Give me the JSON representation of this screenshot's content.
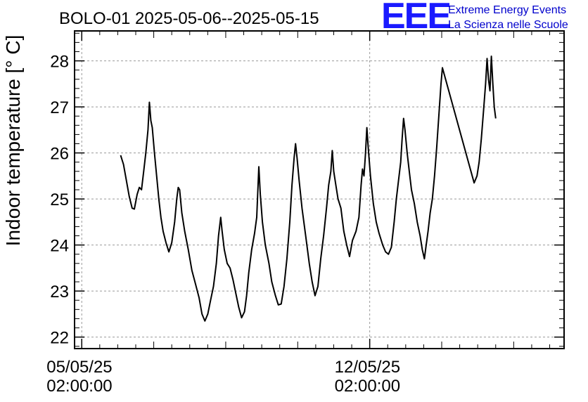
{
  "header": {
    "title": "BOLO-01 2025-05-06--2025-05-15",
    "logo_text": "EEE",
    "logo_line1": "Extreme Energy Events",
    "logo_line2": "La Scienza nelle Scuole"
  },
  "chart_data": {
    "type": "line",
    "title": "BOLO-01 2025-05-06--2025-05-15",
    "ylabel": "Indoor temperature [° C]",
    "xlabel": "",
    "ylim": [
      21.75,
      28.65
    ],
    "xlim_days": [
      -0.1,
      6.7
    ],
    "grid": true,
    "y_ticks": [
      22,
      23,
      24,
      25,
      26,
      27,
      28
    ],
    "y_tick_labels": [
      "22",
      "23",
      "24",
      "25",
      "26",
      "27",
      "28"
    ],
    "x_ticks": [
      {
        "value": 0,
        "line1": "05/05/25",
        "line2": "02:00:00"
      },
      {
        "value": 4,
        "line1": "12/05/25",
        "line2": "02:00:00"
      }
    ],
    "x_unit": "days since 05/05/25 02:00:00",
    "line_color": "#000000",
    "series": [
      {
        "name": "",
        "points": [
          [
            0.54,
            25.95
          ],
          [
            0.58,
            25.75
          ],
          [
            0.62,
            25.4
          ],
          [
            0.66,
            25.05
          ],
          [
            0.7,
            24.8
          ],
          [
            0.73,
            24.78
          ],
          [
            0.77,
            25.1
          ],
          [
            0.8,
            25.25
          ],
          [
            0.83,
            25.2
          ],
          [
            0.86,
            25.6
          ],
          [
            0.89,
            26.0
          ],
          [
            0.92,
            26.5
          ],
          [
            0.94,
            27.1
          ],
          [
            0.96,
            26.7
          ],
          [
            0.98,
            26.55
          ],
          [
            1.01,
            26.0
          ],
          [
            1.04,
            25.5
          ],
          [
            1.07,
            25.0
          ],
          [
            1.1,
            24.6
          ],
          [
            1.13,
            24.3
          ],
          [
            1.17,
            24.05
          ],
          [
            1.21,
            23.85
          ],
          [
            1.25,
            24.05
          ],
          [
            1.29,
            24.5
          ],
          [
            1.32,
            25.0
          ],
          [
            1.34,
            25.25
          ],
          [
            1.36,
            25.2
          ],
          [
            1.39,
            24.7
          ],
          [
            1.43,
            24.3
          ],
          [
            1.48,
            23.9
          ],
          [
            1.53,
            23.45
          ],
          [
            1.58,
            23.15
          ],
          [
            1.63,
            22.85
          ],
          [
            1.67,
            22.5
          ],
          [
            1.71,
            22.35
          ],
          [
            1.75,
            22.5
          ],
          [
            1.79,
            22.8
          ],
          [
            1.83,
            23.1
          ],
          [
            1.87,
            23.6
          ],
          [
            1.9,
            24.2
          ],
          [
            1.93,
            24.6
          ],
          [
            1.95,
            24.3
          ],
          [
            1.98,
            23.9
          ],
          [
            2.02,
            23.6
          ],
          [
            2.06,
            23.5
          ],
          [
            2.1,
            23.25
          ],
          [
            2.14,
            22.95
          ],
          [
            2.18,
            22.65
          ],
          [
            2.22,
            22.42
          ],
          [
            2.26,
            22.55
          ],
          [
            2.29,
            22.9
          ],
          [
            2.32,
            23.4
          ],
          [
            2.36,
            23.9
          ],
          [
            2.4,
            24.25
          ],
          [
            2.43,
            24.6
          ],
          [
            2.46,
            25.7
          ],
          [
            2.48,
            25.1
          ],
          [
            2.51,
            24.5
          ],
          [
            2.55,
            24.0
          ],
          [
            2.6,
            23.6
          ],
          [
            2.64,
            23.2
          ],
          [
            2.69,
            22.9
          ],
          [
            2.73,
            22.7
          ],
          [
            2.77,
            22.72
          ],
          [
            2.81,
            23.1
          ],
          [
            2.85,
            23.7
          ],
          [
            2.89,
            24.5
          ],
          [
            2.92,
            25.3
          ],
          [
            2.95,
            25.9
          ],
          [
            2.97,
            26.2
          ],
          [
            2.99,
            25.9
          ],
          [
            3.02,
            25.4
          ],
          [
            3.06,
            24.8
          ],
          [
            3.11,
            24.2
          ],
          [
            3.16,
            23.6
          ],
          [
            3.2,
            23.2
          ],
          [
            3.24,
            22.9
          ],
          [
            3.28,
            23.1
          ],
          [
            3.32,
            23.7
          ],
          [
            3.36,
            24.2
          ],
          [
            3.4,
            24.8
          ],
          [
            3.43,
            25.3
          ],
          [
            3.46,
            25.6
          ],
          [
            3.48,
            26.05
          ],
          [
            3.5,
            25.6
          ],
          [
            3.53,
            25.3
          ],
          [
            3.56,
            25.0
          ],
          [
            3.6,
            24.8
          ],
          [
            3.64,
            24.3
          ],
          [
            3.68,
            24.0
          ],
          [
            3.72,
            23.75
          ],
          [
            3.76,
            24.1
          ],
          [
            3.81,
            24.3
          ],
          [
            3.85,
            24.6
          ],
          [
            3.88,
            25.3
          ],
          [
            3.9,
            25.65
          ],
          [
            3.92,
            25.5
          ],
          [
            3.94,
            25.95
          ],
          [
            3.96,
            26.55
          ],
          [
            3.98,
            26.1
          ],
          [
            4.01,
            25.5
          ],
          [
            4.05,
            24.9
          ],
          [
            4.09,
            24.5
          ],
          [
            4.13,
            24.25
          ],
          [
            4.18,
            24.0
          ],
          [
            4.22,
            23.85
          ],
          [
            4.26,
            23.8
          ],
          [
            4.3,
            23.95
          ],
          [
            4.34,
            24.5
          ],
          [
            4.37,
            25.0
          ],
          [
            4.4,
            25.4
          ],
          [
            4.43,
            25.8
          ],
          [
            4.45,
            26.3
          ],
          [
            4.47,
            26.75
          ],
          [
            4.49,
            26.5
          ],
          [
            4.52,
            26.0
          ],
          [
            4.55,
            25.6
          ],
          [
            4.58,
            25.2
          ],
          [
            4.62,
            24.9
          ],
          [
            4.66,
            24.5
          ],
          [
            4.7,
            24.2
          ],
          [
            4.73,
            23.9
          ],
          [
            4.76,
            23.7
          ],
          [
            4.78,
            23.95
          ],
          [
            4.81,
            24.3
          ],
          [
            4.84,
            24.7
          ],
          [
            4.87,
            25.0
          ],
          [
            4.9,
            25.5
          ],
          [
            4.93,
            26.1
          ],
          [
            4.96,
            26.8
          ],
          [
            4.99,
            27.5
          ],
          [
            5.01,
            27.85
          ],
          [
            5.45,
            25.35
          ],
          [
            5.49,
            25.5
          ],
          [
            5.52,
            25.8
          ],
          [
            5.55,
            26.3
          ],
          [
            5.58,
            26.9
          ],
          [
            5.61,
            27.5
          ],
          [
            5.63,
            28.05
          ],
          [
            5.65,
            27.6
          ],
          [
            5.67,
            27.35
          ],
          [
            5.69,
            28.1
          ],
          [
            5.71,
            27.5
          ],
          [
            5.73,
            27.0
          ],
          [
            5.75,
            26.75
          ]
        ]
      }
    ]
  }
}
